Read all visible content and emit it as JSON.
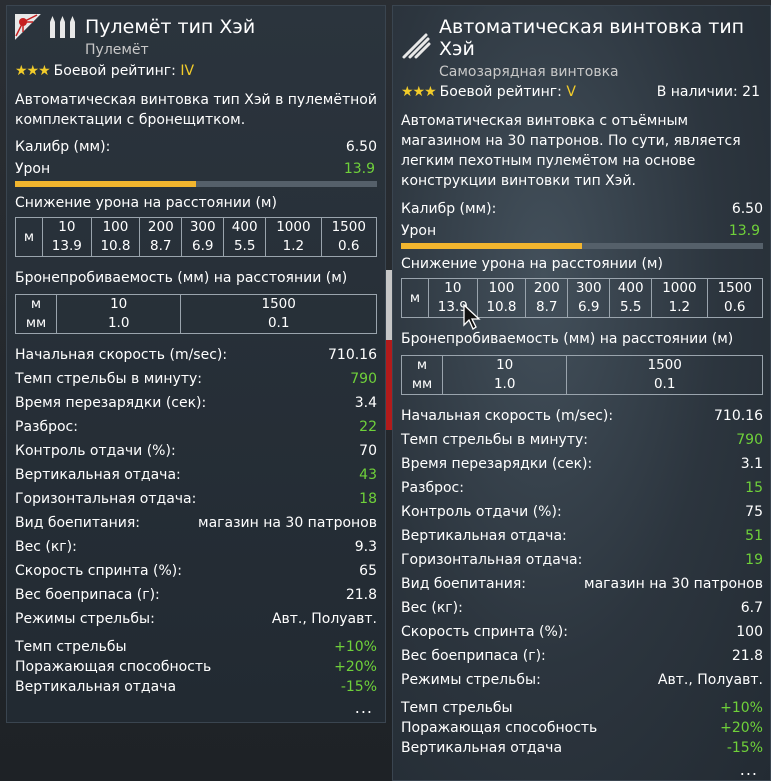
{
  "left": {
    "title": "Пулемёт тип Хэй",
    "subtitle": "Пулемёт",
    "rating_stars": "★★★",
    "rating_label": "Боевой рейтинг:",
    "rating_value": "IV",
    "description_lines": [
      "Автоматическая винтовка тип Хэй в пулемётной",
      "комплектации с бронещитком."
    ],
    "caliber_label": "Калибр (мм):",
    "caliber_value": "6.50",
    "damage_label": "Урон",
    "damage_value": "13.9",
    "damage_fill": 0.5,
    "falloff_label": "Снижение урона на расстоянии (м)",
    "falloff_unit": "м",
    "falloff": [
      {
        "d": "10",
        "v": "13.9"
      },
      {
        "d": "100",
        "v": "10.8"
      },
      {
        "d": "200",
        "v": "8.7"
      },
      {
        "d": "300",
        "v": "6.9"
      },
      {
        "d": "400",
        "v": "5.5"
      },
      {
        "d": "1000",
        "v": "1.2"
      },
      {
        "d": "1500",
        "v": "0.6"
      }
    ],
    "pen_label": "Бронепробиваемость (мм) на расстоянии (м)",
    "pen_unit_m": "м",
    "pen_unit_mm": "мм",
    "pen": [
      {
        "d": "10",
        "v": "1.0"
      },
      {
        "d": "1500",
        "v": "0.1"
      }
    ],
    "stats": [
      {
        "label": "Начальная скорость (m/sec):",
        "value": "710.16",
        "green": false
      },
      {
        "label": "Темп стрельбы в минуту:",
        "value": "790",
        "green": true
      },
      {
        "label": "Время перезарядки (сек):",
        "value": "3.4",
        "green": false
      },
      {
        "label": "Разброс:",
        "value": "22",
        "green": true
      },
      {
        "label": "Контроль отдачи (%):",
        "value": "70",
        "green": false
      },
      {
        "label": "Вертикальная отдача:",
        "value": "43",
        "green": true
      },
      {
        "label": "Горизонтальная отдача:",
        "value": "18",
        "green": true
      },
      {
        "label": "Вид боепитания:",
        "value": "магазин на 30 патронов",
        "green": false
      },
      {
        "label": "Вес (кг):",
        "value": "9.3",
        "green": false
      },
      {
        "label": "Скорость спринта (%):",
        "value": "65",
        "green": false
      },
      {
        "label": "Вес боеприпаса (г):",
        "value": "21.8",
        "green": false
      },
      {
        "label": "Режимы стрельбы:",
        "value": "Авт., Полуавт.",
        "green": false
      }
    ],
    "mods": [
      {
        "label": "Темп стрельбы",
        "value": "+10%"
      },
      {
        "label": "Поражающая способность",
        "value": "+20%"
      },
      {
        "label": "Вертикальная отдача",
        "value": "-15%"
      }
    ],
    "more": "..."
  },
  "right": {
    "title_lines": [
      "Автоматическая винтовка тип",
      "Хэй"
    ],
    "subtitle": "Самозарядная винтовка",
    "rating_stars": "★★★",
    "rating_label": "Боевой рейтинг:",
    "rating_value": "V",
    "avail_label": "В наличии:",
    "avail_value": "21",
    "description_lines": [
      "Автоматическая винтовка с отъёмным",
      "магазином на 30 патронов. По сути, является",
      "легким пехотным пулемётом на основе",
      "конструкции винтовки тип Хэй."
    ],
    "caliber_label": "Калибр (мм):",
    "caliber_value": "6.50",
    "damage_label": "Урон",
    "damage_value": "13.9",
    "damage_fill": 0.5,
    "falloff_label": "Снижение урона на расстоянии (м)",
    "falloff_unit": "м",
    "falloff": [
      {
        "d": "10",
        "v": "13.9"
      },
      {
        "d": "100",
        "v": "10.8"
      },
      {
        "d": "200",
        "v": "8.7"
      },
      {
        "d": "300",
        "v": "6.9"
      },
      {
        "d": "400",
        "v": "5.5"
      },
      {
        "d": "1000",
        "v": "1.2"
      },
      {
        "d": "1500",
        "v": "0.6"
      }
    ],
    "pen_label": "Бронепробиваемость (мм) на расстоянии (м)",
    "pen_unit_m": "м",
    "pen_unit_mm": "мм",
    "pen": [
      {
        "d": "10",
        "v": "1.0"
      },
      {
        "d": "1500",
        "v": "0.1"
      }
    ],
    "stats": [
      {
        "label": "Начальная скорость (m/sec):",
        "value": "710.16",
        "green": false
      },
      {
        "label": "Темп стрельбы в минуту:",
        "value": "790",
        "green": true
      },
      {
        "label": "Время перезарядки (сек):",
        "value": "3.1",
        "green": false
      },
      {
        "label": "Разброс:",
        "value": "15",
        "green": true
      },
      {
        "label": "Контроль отдачи (%):",
        "value": "75",
        "green": false
      },
      {
        "label": "Вертикальная отдача:",
        "value": "51",
        "green": true
      },
      {
        "label": "Горизонтальная отдача:",
        "value": "19",
        "green": true
      },
      {
        "label": "Вид боепитания:",
        "value": "магазин на 30 патронов",
        "green": false
      },
      {
        "label": "Вес (кг):",
        "value": "6.7",
        "green": false
      },
      {
        "label": "Скорость спринта (%):",
        "value": "100",
        "green": false
      },
      {
        "label": "Вес боеприпаса (г):",
        "value": "21.8",
        "green": false
      },
      {
        "label": "Режимы стрельбы:",
        "value": "Авт., Полуавт.",
        "green": false
      }
    ],
    "mods": [
      {
        "label": "Темп стрельбы",
        "value": "+10%"
      },
      {
        "label": "Поражающая способность",
        "value": "+20%"
      },
      {
        "label": "Вертикальная отдача",
        "value": "-15%"
      }
    ],
    "more": "..."
  },
  "colors": {
    "accent_yellow": "#f2b52e",
    "positive_green": "#6fd13a"
  },
  "icons": {
    "left_flag": "rising-sun-flag-icon",
    "left_ammo": "ammo-icon",
    "right_weapon": "rifle-icon"
  }
}
